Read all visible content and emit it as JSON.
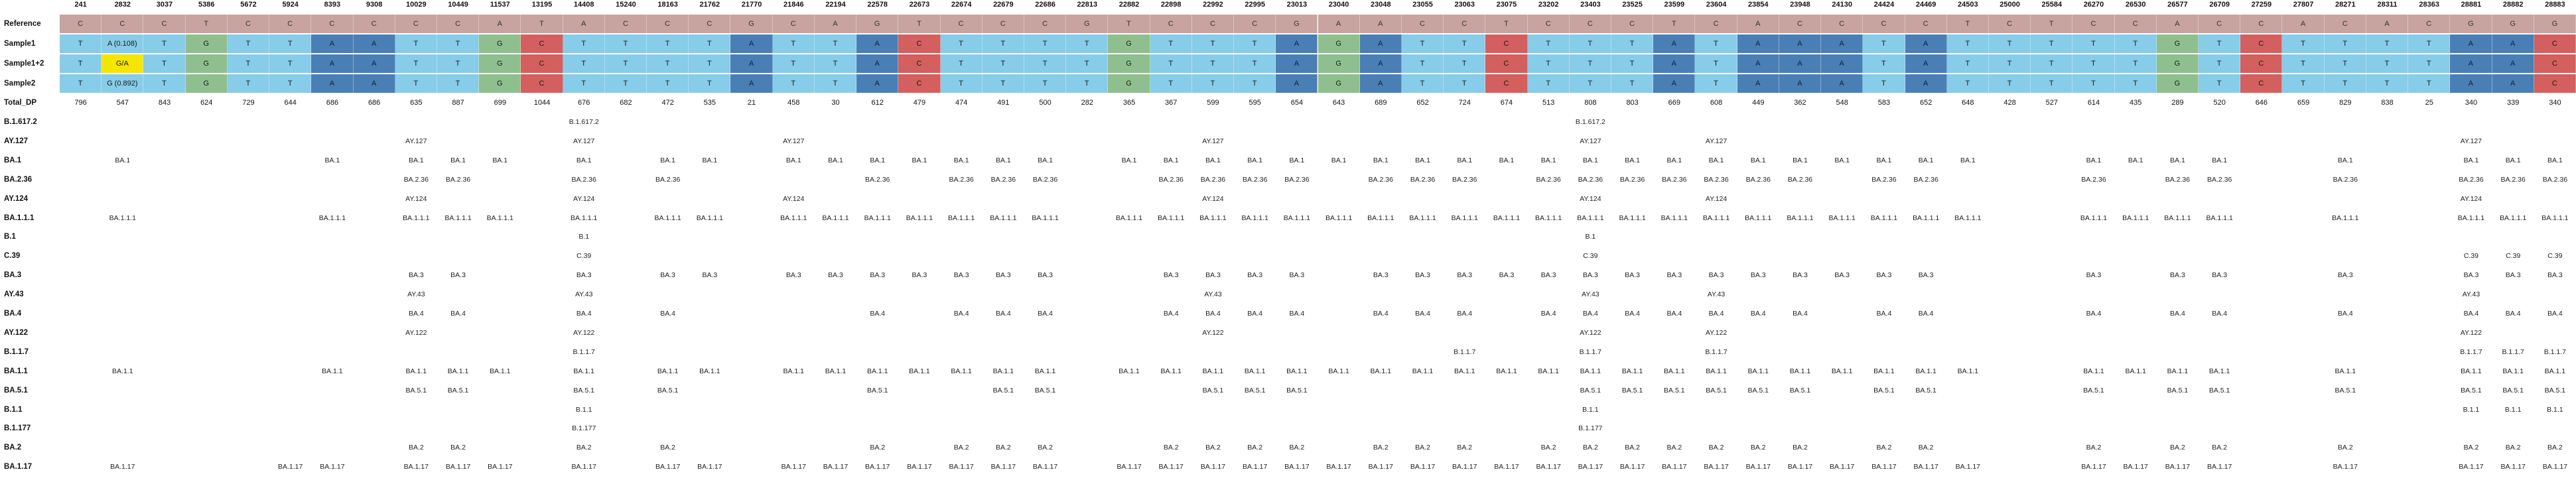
{
  "positions": [
    "241",
    "2832",
    "3037",
    "5386",
    "5672",
    "5924",
    "8393",
    "9308",
    "10029",
    "10449",
    "11537",
    "13195",
    "14408",
    "15240",
    "18163",
    "21762",
    "21770",
    "21846",
    "22194",
    "22578",
    "22673",
    "22674",
    "22679",
    "22686",
    "22813",
    "22882",
    "22898",
    "22992",
    "22995",
    "23013",
    "23040",
    "23048",
    "23055",
    "23063",
    "23075",
    "23202",
    "23403",
    "23525",
    "23599",
    "23604",
    "23854",
    "23948",
    "24130",
    "24424",
    "24469",
    "24503",
    "25000",
    "25584",
    "26270",
    "26530",
    "26577",
    "26709",
    "27259",
    "27807",
    "28271",
    "28311",
    "28363",
    "28881",
    "28882",
    "28883"
  ],
  "row_labels": {
    "reference": "Reference",
    "sample1": "Sample1",
    "sample12": "Sample1+2",
    "sample2": "Sample2",
    "total_dp": "Total_DP"
  },
  "lineage_labels": [
    "B.1.617.2",
    "AY.127",
    "BA.1",
    "BA.2.36",
    "AY.124",
    "BA.1.1.1",
    "B.1",
    "C.39",
    "BA.3",
    "AY.43",
    "BA.4",
    "AY.122",
    "B.1.1.7",
    "BA.1.1",
    "BA.5.1",
    "B.1.1",
    "B.1.177",
    "BA.2",
    "BA.1.17"
  ],
  "reference": [
    "C",
    "C",
    "C",
    "T",
    "C",
    "C",
    "C",
    "C",
    "C",
    "C",
    "A",
    "T",
    "A",
    "C",
    "C",
    "C",
    "G",
    "C",
    "A",
    "G",
    "T",
    "C",
    "C",
    "C",
    "G",
    "T",
    "C",
    "C",
    "C",
    "G",
    "A",
    "A",
    "C",
    "C",
    "T",
    "C",
    "C",
    "C",
    "T",
    "C",
    "A",
    "C",
    "C",
    "C",
    "C",
    "T",
    "C",
    "T",
    "C",
    "C",
    "A",
    "C",
    "C",
    "A",
    "C",
    "A",
    "C",
    "G",
    "G",
    "G"
  ],
  "sample1": [
    "T",
    "A (0.108)",
    "T",
    "G",
    "T",
    "T",
    "A",
    "A",
    "T",
    "T",
    "G",
    "C",
    "T",
    "T",
    "T",
    "T",
    "A",
    "T",
    "T",
    "A",
    "C",
    "T",
    "T",
    "T",
    "T",
    "G",
    "T",
    "T",
    "T",
    "A",
    "G",
    "A",
    "T",
    "T",
    "C",
    "T",
    "T",
    "T",
    "A",
    "T",
    "A",
    "A",
    "A",
    "T",
    "A",
    "T",
    "T",
    "T",
    "T",
    "T",
    "G",
    "T",
    "C",
    "T",
    "T",
    "T",
    "T",
    "A",
    "A",
    "C"
  ],
  "sample12": [
    "T",
    "G/A",
    "T",
    "G",
    "T",
    "T",
    "A",
    "A",
    "T",
    "T",
    "G",
    "C",
    "T",
    "T",
    "T",
    "T",
    "A",
    "T",
    "T",
    "A",
    "C",
    "T",
    "T",
    "T",
    "T",
    "G",
    "T",
    "T",
    "T",
    "A",
    "G",
    "A",
    "T",
    "T",
    "C",
    "T",
    "T",
    "T",
    "A",
    "T",
    "A",
    "A",
    "A",
    "T",
    "A",
    "T",
    "T",
    "T",
    "T",
    "T",
    "G",
    "T",
    "C",
    "T",
    "T",
    "T",
    "T",
    "A",
    "A",
    "C"
  ],
  "sample2": [
    "T",
    "G (0.892)",
    "T",
    "G",
    "T",
    "T",
    "A",
    "A",
    "T",
    "T",
    "G",
    "C",
    "T",
    "T",
    "T",
    "T",
    "A",
    "T",
    "T",
    "A",
    "C",
    "T",
    "T",
    "T",
    "T",
    "G",
    "T",
    "T",
    "T",
    "A",
    "G",
    "A",
    "T",
    "T",
    "C",
    "T",
    "T",
    "T",
    "A",
    "T",
    "A",
    "A",
    "A",
    "T",
    "A",
    "T",
    "T",
    "T",
    "T",
    "T",
    "G",
    "T",
    "C",
    "T",
    "T",
    "T",
    "T",
    "A",
    "A",
    "C"
  ],
  "total_dp": [
    "796",
    "547",
    "843",
    "624",
    "729",
    "644",
    "686",
    "686",
    "635",
    "887",
    "699",
    "1044",
    "676",
    "682",
    "472",
    "535",
    "21",
    "458",
    "30",
    "612",
    "479",
    "474",
    "491",
    "500",
    "282",
    "365",
    "367",
    "599",
    "595",
    "654",
    "643",
    "689",
    "652",
    "724",
    "674",
    "513",
    "808",
    "803",
    "669",
    "608",
    "449",
    "362",
    "548",
    "583",
    "652",
    "648",
    "428",
    "527",
    "614",
    "435",
    "289",
    "520",
    "646",
    "659",
    "829",
    "838",
    "25",
    "340",
    "339",
    "340"
  ],
  "lineages": {
    "B.1.617.2": {
      "12": "B.1.617.2",
      "36": "B.1.617.2"
    },
    "AY.127": {
      "8": "AY.127",
      "12": "AY.127",
      "17": "AY.127",
      "27": "AY.127",
      "36": "AY.127",
      "39": "AY.127",
      "57": "AY.127"
    },
    "BA.1": {
      "1": "BA.1",
      "6": "BA.1",
      "8": "BA.1",
      "9": "BA.1",
      "10": "BA.1",
      "12": "BA.1",
      "14": "BA.1",
      "15": "BA.1",
      "17": "BA.1",
      "18": "BA.1",
      "19": "BA.1",
      "20": "BA.1",
      "21": "BA.1",
      "22": "BA.1",
      "23": "BA.1",
      "25": "BA.1",
      "26": "BA.1",
      "27": "BA.1",
      "28": "BA.1",
      "29": "BA.1",
      "30": "BA.1",
      "31": "BA.1",
      "32": "BA.1",
      "33": "BA.1",
      "34": "BA.1",
      "35": "BA.1",
      "36": "BA.1",
      "37": "BA.1",
      "38": "BA.1",
      "39": "BA.1",
      "40": "BA.1",
      "41": "BA.1",
      "42": "BA.1",
      "43": "BA.1",
      "44": "BA.1",
      "45": "BA.1",
      "48": "BA.1",
      "49": "BA.1",
      "50": "BA.1",
      "51": "BA.1",
      "54": "BA.1",
      "57": "BA.1",
      "58": "BA.1",
      "59": "BA.1"
    },
    "BA.2.36": {
      "8": "BA.2.36",
      "9": "BA.2.36",
      "12": "BA.2.36",
      "14": "BA.2.36",
      "19": "BA.2.36",
      "21": "BA.2.36",
      "22": "BA.2.36",
      "23": "BA.2.36",
      "26": "BA.2.36",
      "27": "BA.2.36",
      "28": "BA.2.36",
      "29": "BA.2.36",
      "31": "BA.2.36",
      "32": "BA.2.36",
      "33": "BA.2.36",
      "35": "BA.2.36",
      "36": "BA.2.36",
      "37": "BA.2.36",
      "38": "BA.2.36",
      "39": "BA.2.36",
      "40": "BA.2.36",
      "41": "BA.2.36",
      "43": "BA.2.36",
      "44": "BA.2.36",
      "48": "BA.2.36",
      "50": "BA.2.36",
      "51": "BA.2.36",
      "54": "BA.2.36",
      "57": "BA.2.36",
      "58": "BA.2.36",
      "59": "BA.2.36"
    },
    "AY.124": {
      "8": "AY.124",
      "12": "AY.124",
      "17": "AY.124",
      "27": "AY.124",
      "36": "AY.124",
      "39": "AY.124",
      "57": "AY.124"
    },
    "BA.1.1.1": {
      "1": "BA.1.1.1",
      "6": "BA.1.1.1",
      "8": "BA.1.1.1",
      "9": "BA.1.1.1",
      "10": "BA.1.1.1",
      "12": "BA.1.1.1",
      "14": "BA.1.1.1",
      "15": "BA.1.1.1",
      "17": "BA.1.1.1",
      "18": "BA.1.1.1",
      "19": "BA.1.1.1",
      "20": "BA.1.1.1",
      "21": "BA.1.1.1",
      "22": "BA.1.1.1",
      "23": "BA.1.1.1",
      "25": "BA.1.1.1",
      "26": "BA.1.1.1",
      "27": "BA.1.1.1",
      "28": "BA.1.1.1",
      "29": "BA.1.1.1",
      "30": "BA.1.1.1",
      "31": "BA.1.1.1",
      "32": "BA.1.1.1",
      "33": "BA.1.1.1",
      "34": "BA.1.1.1",
      "35": "BA.1.1.1",
      "36": "BA.1.1.1",
      "37": "BA.1.1.1",
      "38": "BA.1.1.1",
      "39": "BA.1.1.1",
      "40": "BA.1.1.1",
      "41": "BA.1.1.1",
      "42": "BA.1.1.1",
      "43": "BA.1.1.1",
      "44": "BA.1.1.1",
      "45": "BA.1.1.1",
      "48": "BA.1.1.1",
      "49": "BA.1.1.1",
      "50": "BA.1.1.1",
      "51": "BA.1.1.1",
      "54": "BA.1.1.1",
      "57": "BA.1.1.1",
      "58": "BA.1.1.1",
      "59": "BA.1.1.1"
    },
    "B.1": {
      "12": "B.1",
      "36": "B.1"
    },
    "C.39": {
      "12": "C.39",
      "36": "C.39",
      "57": "C.39",
      "58": "C.39",
      "59": "C.39"
    },
    "BA.3": {
      "8": "BA.3",
      "9": "BA.3",
      "12": "BA.3",
      "14": "BA.3",
      "15": "BA.3",
      "17": "BA.3",
      "18": "BA.3",
      "19": "BA.3",
      "20": "BA.3",
      "21": "BA.3",
      "22": "BA.3",
      "23": "BA.3",
      "26": "BA.3",
      "27": "BA.3",
      "28": "BA.3",
      "29": "BA.3",
      "31": "BA.3",
      "32": "BA.3",
      "33": "BA.3",
      "34": "BA.3",
      "35": "BA.3",
      "36": "BA.3",
      "37": "BA.3",
      "38": "BA.3",
      "39": "BA.3",
      "40": "BA.3",
      "41": "BA.3",
      "42": "BA.3",
      "43": "BA.3",
      "44": "BA.3",
      "48": "BA.3",
      "50": "BA.3",
      "51": "BA.3",
      "54": "BA.3",
      "57": "BA.3",
      "58": "BA.3",
      "59": "BA.3"
    },
    "AY.43": {
      "8": "AY.43",
      "12": "AY.43",
      "27": "AY.43",
      "36": "AY.43",
      "39": "AY.43",
      "57": "AY.43"
    },
    "BA.4": {
      "8": "BA.4",
      "9": "BA.4",
      "12": "BA.4",
      "14": "BA.4",
      "19": "BA.4",
      "21": "BA.4",
      "22": "BA.4",
      "23": "BA.4",
      "26": "BA.4",
      "27": "BA.4",
      "28": "BA.4",
      "29": "BA.4",
      "31": "BA.4",
      "32": "BA.4",
      "33": "BA.4",
      "35": "BA.4",
      "36": "BA.4",
      "37": "BA.4",
      "38": "BA.4",
      "39": "BA.4",
      "40": "BA.4",
      "41": "BA.4",
      "43": "BA.4",
      "44": "BA.4",
      "48": "BA.4",
      "50": "BA.4",
      "51": "BA.4",
      "54": "BA.4",
      "57": "BA.4",
      "58": "BA.4",
      "59": "BA.4"
    },
    "AY.122": {
      "8": "AY.122",
      "12": "AY.122",
      "27": "AY.122",
      "36": "AY.122",
      "39": "AY.122",
      "57": "AY.122"
    },
    "B.1.1.7": {
      "12": "B.1.1.7",
      "33": "B.1.1.7",
      "36": "B.1.1.7",
      "39": "B.1.1.7",
      "57": "B.1.1.7",
      "58": "B.1.1.7",
      "59": "B.1.1.7"
    },
    "BA.1.1": {
      "1": "BA.1.1",
      "6": "BA.1.1",
      "8": "BA.1.1",
      "9": "BA.1.1",
      "10": "BA.1.1",
      "12": "BA.1.1",
      "14": "BA.1.1",
      "15": "BA.1.1",
      "17": "BA.1.1",
      "18": "BA.1.1",
      "19": "BA.1.1",
      "20": "BA.1.1",
      "21": "BA.1.1",
      "22": "BA.1.1",
      "23": "BA.1.1",
      "25": "BA.1.1",
      "26": "BA.1.1",
      "27": "BA.1.1",
      "28": "BA.1.1",
      "29": "BA.1.1",
      "30": "BA.1.1",
      "31": "BA.1.1",
      "32": "BA.1.1",
      "33": "BA.1.1",
      "34": "BA.1.1",
      "35": "BA.1.1",
      "36": "BA.1.1",
      "37": "BA.1.1",
      "38": "BA.1.1",
      "39": "BA.1.1",
      "40": "BA.1.1",
      "41": "BA.1.1",
      "42": "BA.1.1",
      "43": "BA.1.1",
      "44": "BA.1.1",
      "45": "BA.1.1",
      "48": "BA.1.1",
      "49": "BA.1.1",
      "50": "BA.1.1",
      "51": "BA.1.1",
      "54": "BA.1.1",
      "57": "BA.1.1",
      "58": "BA.1.1",
      "59": "BA.1.1"
    },
    "BA.5.1": {
      "8": "BA.5.1",
      "9": "BA.5.1",
      "12": "BA.5.1",
      "14": "BA.5.1",
      "19": "BA.5.1",
      "22": "BA.5.1",
      "23": "BA.5.1",
      "27": "BA.5.1",
      "28": "BA.5.1",
      "29": "BA.5.1",
      "36": "BA.5.1",
      "37": "BA.5.1",
      "38": "BA.5.1",
      "39": "BA.5.1",
      "40": "BA.5.1",
      "41": "BA.5.1",
      "43": "BA.5.1",
      "44": "BA.5.1",
      "48": "BA.5.1",
      "50": "BA.5.1",
      "51": "BA.5.1",
      "54": "BA.5.1",
      "57": "BA.5.1",
      "58": "BA.5.1",
      "59": "BA.5.1"
    },
    "B.1.1": {
      "12": "B.1.1",
      "36": "B.1.1",
      "57": "B.1.1",
      "58": "B.1.1",
      "59": "B.1.1"
    },
    "B.1.177": {
      "12": "B.1.177",
      "36": "B.1.177"
    },
    "BA.2": {
      "8": "BA.2",
      "9": "BA.2",
      "12": "BA.2",
      "14": "BA.2",
      "19": "BA.2",
      "21": "BA.2",
      "22": "BA.2",
      "23": "BA.2",
      "26": "BA.2",
      "27": "BA.2",
      "28": "BA.2",
      "29": "BA.2",
      "31": "BA.2",
      "32": "BA.2",
      "33": "BA.2",
      "35": "BA.2",
      "36": "BA.2",
      "37": "BA.2",
      "38": "BA.2",
      "39": "BA.2",
      "40": "BA.2",
      "41": "BA.2",
      "43": "BA.2",
      "44": "BA.2",
      "48": "BA.2",
      "50": "BA.2",
      "51": "BA.2",
      "54": "BA.2",
      "57": "BA.2",
      "58": "BA.2",
      "59": "BA.2"
    },
    "BA.1.17": {
      "1": "BA.1.17",
      "5": "BA.1.17",
      "6": "BA.1.17",
      "8": "BA.1.17",
      "9": "BA.1.17",
      "10": "BA.1.17",
      "12": "BA.1.17",
      "14": "BA.1.17",
      "15": "BA.1.17",
      "17": "BA.1.17",
      "18": "BA.1.17",
      "19": "BA.1.17",
      "20": "BA.1.17",
      "21": "BA.1.17",
      "22": "BA.1.17",
      "23": "BA.1.17",
      "25": "BA.1.17",
      "26": "BA.1.17",
      "27": "BA.1.17",
      "28": "BA.1.17",
      "29": "BA.1.17",
      "30": "BA.1.17",
      "31": "BA.1.17",
      "32": "BA.1.17",
      "33": "BA.1.17",
      "34": "BA.1.17",
      "35": "BA.1.17",
      "36": "BA.1.17",
      "37": "BA.1.17",
      "38": "BA.1.17",
      "39": "BA.1.17",
      "40": "BA.1.17",
      "41": "BA.1.17",
      "42": "BA.1.17",
      "43": "BA.1.17",
      "44": "BA.1.17",
      "45": "BA.1.17",
      "48": "BA.1.17",
      "49": "BA.1.17",
      "50": "BA.1.17",
      "51": "BA.1.17",
      "54": "BA.1.17",
      "57": "BA.1.17",
      "58": "BA.1.17",
      "59": "BA.1.17"
    }
  },
  "colors": {
    "A": "#4a7fb5",
    "T": "#87cce8",
    "G": "#8fbf8f",
    "C": "#d45f5f",
    "reference_bg": "#c8a3a0",
    "mixed_bg": "#f5e600"
  }
}
